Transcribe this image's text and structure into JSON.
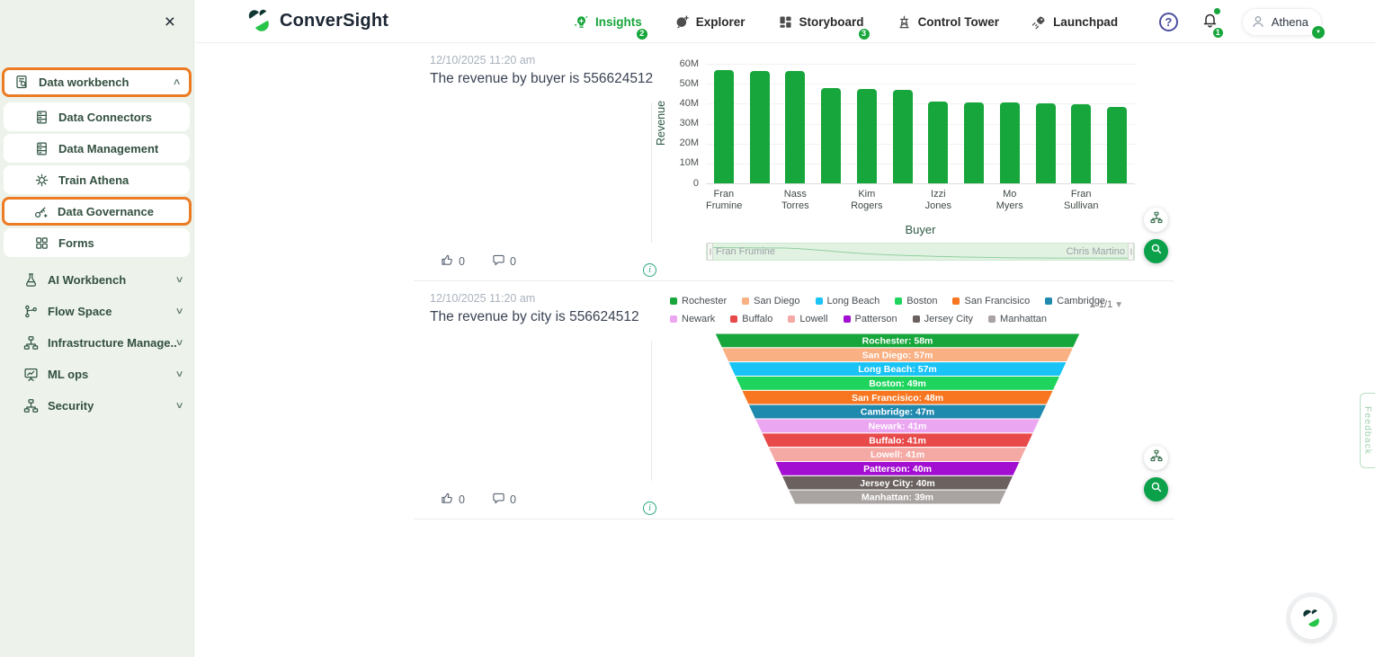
{
  "glyphs": {
    "close": "×",
    "help": "?",
    "info": "i",
    "pagination_up": "▲",
    "pagination_down": "▼",
    "chevron_up": "∧",
    "chevron_down": "∨",
    "user_caret": "▼",
    "brush_handle": "||"
  },
  "colors": {
    "brand_green": "#17a63b",
    "highlight_orange": "#eb7c24",
    "sidebar_bg": "#edf3ea",
    "bar_color": "#17a63b"
  },
  "sidebar": {
    "expanded_group": {
      "label": "Data workbench",
      "icon": "file-search",
      "highlighted": true
    },
    "sub_items": [
      {
        "label": "Data Connectors",
        "icon": "database",
        "highlighted": false
      },
      {
        "label": "Data Management",
        "icon": "database",
        "highlighted": false
      },
      {
        "label": "Train Athena",
        "icon": "gear",
        "highlighted": false
      },
      {
        "label": "Data Governance",
        "icon": "keys",
        "highlighted": true
      },
      {
        "label": "Forms",
        "icon": "grid",
        "highlighted": false
      }
    ],
    "items": [
      {
        "label": "AI Workbench",
        "icon": "flask"
      },
      {
        "label": "Flow Space",
        "icon": "branch"
      },
      {
        "label": "Infrastructure Manage...",
        "icon": "hierarchy"
      },
      {
        "label": "ML ops",
        "icon": "presentation"
      },
      {
        "label": "Security",
        "icon": "hierarchy"
      }
    ]
  },
  "header": {
    "brand": "ConverSight",
    "nav": [
      {
        "label": "Insights",
        "icon": "insights",
        "badge": "2",
        "active": true
      },
      {
        "label": "Explorer",
        "icon": "explorer",
        "badge": null,
        "active": false
      },
      {
        "label": "Storyboard",
        "icon": "storyboard",
        "badge": "3",
        "active": false
      },
      {
        "label": "Control Tower",
        "icon": "control-tower",
        "badge": null,
        "active": false
      },
      {
        "label": "Launchpad",
        "icon": "launchpad",
        "badge": null,
        "active": false
      }
    ],
    "notification_count": "1",
    "user": "Athena"
  },
  "cards": [
    {
      "timestamp": "12/10/2025 11:20 am",
      "title": "The revenue by buyer is 556624512",
      "likes": "0",
      "comments": "0"
    },
    {
      "timestamp": "12/10/2025 11:20 am",
      "title": "The revenue by city is 556624512",
      "likes": "0",
      "comments": "0"
    }
  ],
  "chart_data": [
    {
      "type": "bar",
      "title": "The revenue by buyer is 556624512",
      "xlabel": "Buyer",
      "ylabel": "Revenue",
      "ylim": [
        0,
        60000000
      ],
      "ytick_labels": [
        "60M",
        "50M",
        "40M",
        "30M",
        "20M",
        "10M",
        "0"
      ],
      "grid": true,
      "categories": [
        "Fran Frumine",
        "",
        "Nass Torres",
        "",
        "Kim Rogers",
        "",
        "Izzi Jones",
        "",
        "Mo Myers",
        "",
        "Fran Sullivan",
        ""
      ],
      "values_millions": [
        57,
        56.5,
        56.5,
        48,
        47.5,
        47,
        41,
        40.5,
        40.5,
        40,
        39.5,
        38.5
      ],
      "bar_color": "#17a63b",
      "brush": {
        "start_label": "Fran Frumine",
        "end_label": "Chris Martino"
      }
    },
    {
      "type": "funnel",
      "title": "The revenue by city is 556624512",
      "legend_position": "top",
      "pagination": "1/1",
      "segments": [
        {
          "label": "Rochester",
          "value": "58m",
          "color": "#17a63b"
        },
        {
          "label": "San Diego",
          "value": "57m",
          "color": "#f9b083"
        },
        {
          "label": "Long Beach",
          "value": "57m",
          "color": "#19c3f5"
        },
        {
          "label": "Boston",
          "value": "49m",
          "color": "#1ed45c"
        },
        {
          "label": "San Francisico",
          "value": "48m",
          "color": "#f8761f"
        },
        {
          "label": "Cambridge",
          "value": "47m",
          "color": "#2089ae"
        },
        {
          "label": "Newark",
          "value": "41m",
          "color": "#eba6f2"
        },
        {
          "label": "Buffalo",
          "value": "41m",
          "color": "#e84a4a"
        },
        {
          "label": "Lowell",
          "value": "41m",
          "color": "#f4a9a4"
        },
        {
          "label": "Patterson",
          "value": "40m",
          "color": "#a30fd0"
        },
        {
          "label": "Jersey City",
          "value": "40m",
          "color": "#6b6260"
        },
        {
          "label": "Manhattan",
          "value": "39m",
          "color": "#a9a3a1"
        }
      ]
    }
  ],
  "feedback_label": "Feedback"
}
